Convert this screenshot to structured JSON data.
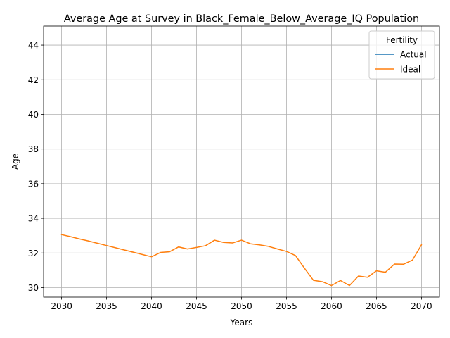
{
  "chart_data": {
    "type": "line",
    "title": "Average Age at Survey in Black_Female_Below_Average_IQ Population",
    "xlabel": "Years",
    "ylabel": "Age",
    "xlim": [
      2028.0,
      2072.0
    ],
    "ylim": [
      29.45,
      45.1
    ],
    "xticks": [
      2030,
      2035,
      2040,
      2045,
      2050,
      2055,
      2060,
      2065,
      2070
    ],
    "yticks": [
      30,
      32,
      34,
      36,
      38,
      40,
      42,
      44
    ],
    "grid": true,
    "legend": {
      "title": "Fertility",
      "position": "top-right"
    },
    "series": [
      {
        "name": "Actual",
        "color": "#1f77b4",
        "x": [],
        "y": []
      },
      {
        "name": "Ideal",
        "color": "#ff7f0e",
        "x": [
          2030,
          2031,
          2032,
          2033,
          2034,
          2035,
          2036,
          2037,
          2038,
          2039,
          2040,
          2041,
          2042,
          2043,
          2044,
          2045,
          2046,
          2047,
          2048,
          2049,
          2050,
          2051,
          2052,
          2053,
          2054,
          2055,
          2056,
          2057,
          2058,
          2059,
          2060,
          2061,
          2062,
          2063,
          2064,
          2065,
          2066,
          2067,
          2068,
          2069,
          2070
        ],
        "y": [
          33.06,
          32.94,
          32.81,
          32.69,
          32.56,
          32.43,
          32.3,
          32.17,
          32.04,
          31.91,
          31.78,
          32.03,
          32.07,
          32.35,
          32.23,
          32.32,
          32.42,
          32.74,
          32.61,
          32.58,
          32.74,
          32.53,
          32.47,
          32.38,
          32.23,
          32.09,
          31.85,
          31.12,
          30.42,
          30.34,
          30.12,
          30.41,
          30.12,
          30.67,
          30.6,
          30.97,
          30.89,
          31.36,
          31.35,
          31.59,
          32.47
        ]
      }
    ]
  }
}
